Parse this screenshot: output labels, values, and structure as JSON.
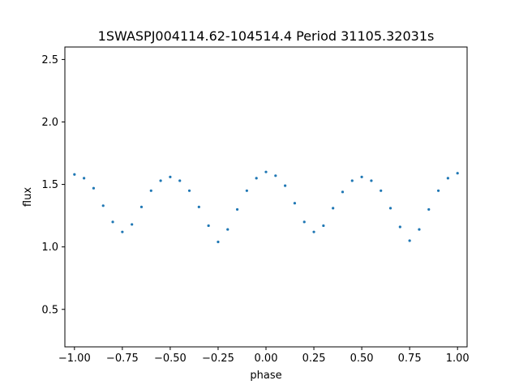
{
  "chart_data": {
    "type": "scatter",
    "title": "1SWASPJ004114.62-104514.4 Period 31105.32031s",
    "xlabel": "phase",
    "ylabel": "flux",
    "xlim": [
      -1.05,
      1.05
    ],
    "ylim": [
      0.2,
      2.6
    ],
    "xticks": [
      -1.0,
      -0.75,
      -0.5,
      -0.25,
      0.0,
      0.25,
      0.5,
      0.75,
      1.0
    ],
    "xtick_labels": [
      "−1.00",
      "−0.75",
      "−0.50",
      "−0.25",
      "0.00",
      "0.25",
      "0.50",
      "0.75",
      "1.00"
    ],
    "yticks": [
      0.5,
      1.0,
      1.5,
      2.0,
      2.5
    ],
    "ytick_labels": [
      "0.5",
      "1.0",
      "1.5",
      "2.0",
      "2.5"
    ],
    "grid": false,
    "marker_color": "#1f77b4",
    "points": [
      [
        -1.0,
        1.58
      ],
      [
        -0.95,
        1.55
      ],
      [
        -0.9,
        1.47
      ],
      [
        -0.85,
        1.33
      ],
      [
        -0.8,
        1.2
      ],
      [
        -0.75,
        1.12
      ],
      [
        -0.7,
        1.18
      ],
      [
        -0.65,
        1.32
      ],
      [
        -0.6,
        1.45
      ],
      [
        -0.55,
        1.53
      ],
      [
        -0.5,
        1.56
      ],
      [
        -0.45,
        1.53
      ],
      [
        -0.4,
        1.45
      ],
      [
        -0.35,
        1.32
      ],
      [
        -0.3,
        1.17
      ],
      [
        -0.25,
        1.04
      ],
      [
        -0.2,
        1.14
      ],
      [
        -0.15,
        1.3
      ],
      [
        -0.1,
        1.45
      ],
      [
        -0.05,
        1.55
      ],
      [
        0.0,
        1.6
      ],
      [
        0.05,
        1.57
      ],
      [
        0.1,
        1.49
      ],
      [
        0.15,
        1.35
      ],
      [
        0.2,
        1.2
      ],
      [
        0.25,
        1.12
      ],
      [
        0.3,
        1.17
      ],
      [
        0.35,
        1.31
      ],
      [
        0.4,
        1.44
      ],
      [
        0.45,
        1.53
      ],
      [
        0.5,
        1.56
      ],
      [
        0.55,
        1.53
      ],
      [
        0.6,
        1.45
      ],
      [
        0.65,
        1.31
      ],
      [
        0.7,
        1.16
      ],
      [
        0.75,
        1.05
      ],
      [
        0.8,
        1.14
      ],
      [
        0.85,
        1.3
      ],
      [
        0.9,
        1.45
      ],
      [
        0.95,
        1.55
      ],
      [
        1.0,
        1.59
      ]
    ]
  }
}
